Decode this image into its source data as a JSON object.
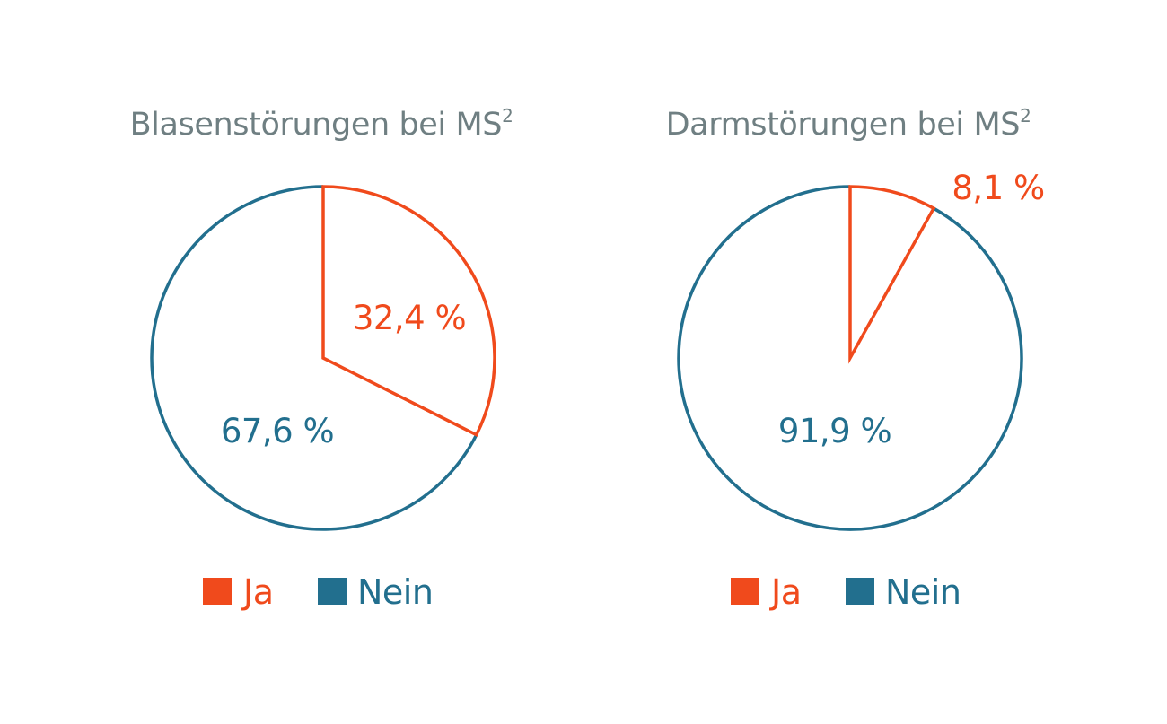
{
  "colors": {
    "ja": "#f04a1c",
    "nein": "#226f8e",
    "title": "#6f7f82"
  },
  "chart_data": [
    {
      "type": "pie",
      "title": "Blasenstörungen bei MS",
      "title_superscript": "2",
      "slices": [
        {
          "name": "Ja",
          "value": 32.4,
          "label": "32,4 %",
          "color": "#f04a1c"
        },
        {
          "name": "Nein",
          "value": 67.6,
          "label": "67,6 %",
          "color": "#226f8e"
        }
      ],
      "legend": [
        {
          "label": "Ja",
          "color": "#f04a1c"
        },
        {
          "label": "Nein",
          "color": "#226f8e"
        }
      ],
      "start_angle": "top",
      "direction": "clockwise",
      "style": "outline",
      "legend_position": "bottom"
    },
    {
      "type": "pie",
      "title": "Darmstörungen bei MS",
      "title_superscript": "2",
      "slices": [
        {
          "name": "Ja",
          "value": 8.1,
          "label": "8,1 %",
          "color": "#f04a1c"
        },
        {
          "name": "Nein",
          "value": 91.9,
          "label": "91,9 %",
          "color": "#226f8e"
        }
      ],
      "legend": [
        {
          "label": "Ja",
          "color": "#f04a1c"
        },
        {
          "label": "Nein",
          "color": "#226f8e"
        }
      ],
      "start_angle": "top",
      "direction": "clockwise",
      "style": "outline",
      "legend_position": "bottom"
    }
  ]
}
